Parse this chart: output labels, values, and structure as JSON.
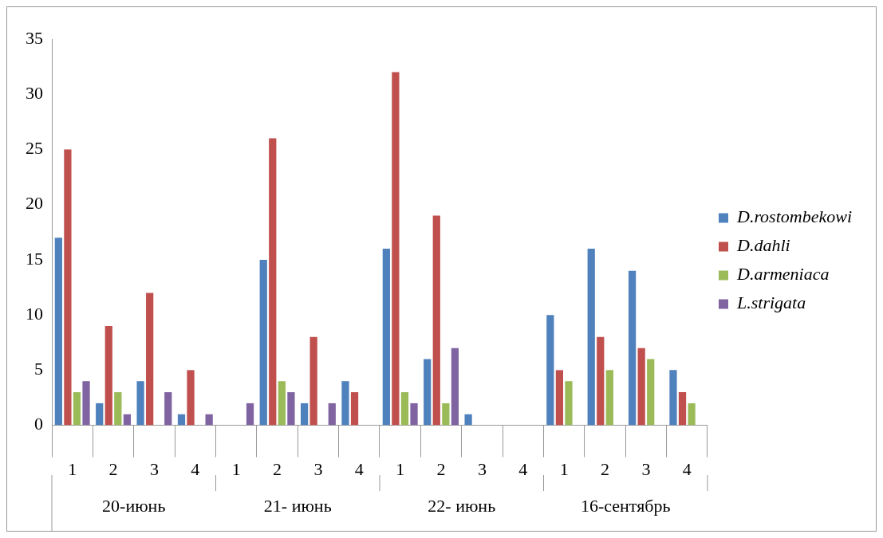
{
  "chart_data": {
    "type": "bar",
    "categories": [
      "1",
      "2",
      "3",
      "4",
      "1",
      "2",
      "3",
      "4",
      "1",
      "2",
      "3",
      "4",
      "1",
      "2",
      "3",
      "4"
    ],
    "series": [
      {
        "name": "D.rostombekowi",
        "color": "#4f81bd",
        "values": [
          17,
          2,
          4,
          1,
          0,
          15,
          2,
          4,
          16,
          6,
          1,
          0,
          10,
          16,
          14,
          5
        ]
      },
      {
        "name": "D.dahli",
        "color": "#c0504d",
        "values": [
          25,
          9,
          12,
          5,
          0,
          26,
          8,
          3,
          32,
          19,
          0,
          0,
          5,
          8,
          7,
          3
        ]
      },
      {
        "name": "D.armeniaca",
        "color": "#9bbb59",
        "values": [
          3,
          3,
          0,
          0,
          0,
          4,
          0,
          0,
          3,
          2,
          0,
          0,
          4,
          5,
          6,
          2
        ]
      },
      {
        "name": "L.strigata",
        "color": "#8064a2",
        "values": [
          4,
          1,
          3,
          1,
          2,
          3,
          2,
          0,
          2,
          7,
          0,
          0,
          0,
          0,
          0,
          0
        ]
      }
    ],
    "annotations": [
      "20-июнь",
      "21- июнь",
      "22- июнь",
      "16-сентябрь"
    ],
    "ylim": [
      0,
      35
    ],
    "yticks": [
      0,
      5,
      10,
      15,
      20,
      25,
      30,
      35
    ],
    "grid": false,
    "legend": "right"
  }
}
